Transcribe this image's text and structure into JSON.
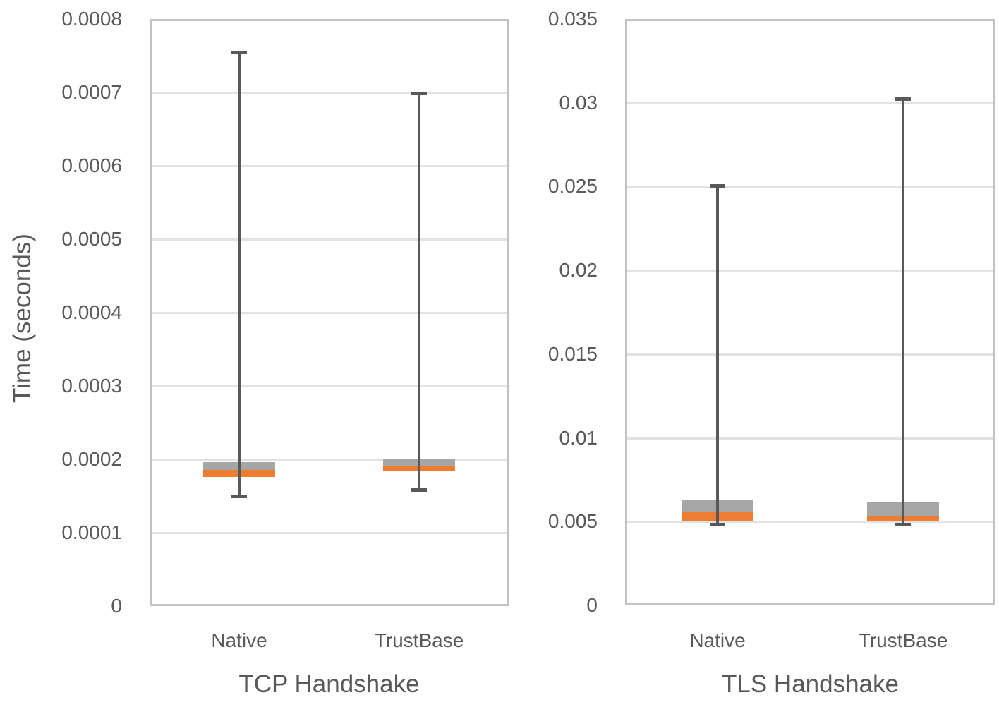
{
  "figure": {
    "y_axis_title": "Time (seconds)"
  },
  "colors": {
    "box_upper_fill": "#a6a6a6",
    "box_lower_fill": "#ed7d31",
    "whisker": "#595959",
    "gridline": "#e2e2e2",
    "plot_border": "#c2c2c2",
    "text": "#595959"
  },
  "chart_data": [
    {
      "type": "box",
      "title": "TCP Handshake",
      "ylabel": "Time (seconds)",
      "xlabel": "TCP Handshake",
      "ylim": [
        0,
        0.0008
      ],
      "grid": true,
      "legend": "none",
      "y_ticks": [
        0,
        0.0001,
        0.0002,
        0.0003,
        0.0004,
        0.0005,
        0.0006,
        0.0007,
        0.0008
      ],
      "y_tick_labels": [
        "0",
        "0.0001",
        "0.0002",
        "0.0003",
        "0.0004",
        "0.0005",
        "0.0006",
        "0.0007",
        "0.0008"
      ],
      "categories": [
        "Native",
        "TrustBase"
      ],
      "series": [
        {
          "name": "Native",
          "whisker_low": 0.000149,
          "q1": 0.000176,
          "median": 0.000186,
          "q3": 0.000196,
          "whisker_high": 0.000756
        },
        {
          "name": "TrustBase",
          "whisker_low": 0.000158,
          "q1": 0.000184,
          "median": 0.00019,
          "q3": 0.0002,
          "whisker_high": 0.0007
        }
      ]
    },
    {
      "type": "box",
      "title": "TLS Handshake",
      "ylabel": "",
      "xlabel": "TLS Handshake",
      "ylim": [
        0,
        0.035
      ],
      "grid": true,
      "legend": "none",
      "y_ticks": [
        0,
        0.005,
        0.01,
        0.015,
        0.02,
        0.025,
        0.03,
        0.035
      ],
      "y_tick_labels": [
        "0",
        "0.005",
        "0.01",
        "0.015",
        "0.02",
        "0.025",
        "0.03",
        "0.035"
      ],
      "categories": [
        "Native",
        "TrustBase"
      ],
      "series": [
        {
          "name": "Native",
          "whisker_low": 0.0048,
          "q1": 0.005,
          "median": 0.00555,
          "q3": 0.0063,
          "whisker_high": 0.0251
        },
        {
          "name": "TrustBase",
          "whisker_low": 0.0048,
          "q1": 0.005,
          "median": 0.0053,
          "q3": 0.0062,
          "whisker_high": 0.0303
        }
      ]
    }
  ]
}
